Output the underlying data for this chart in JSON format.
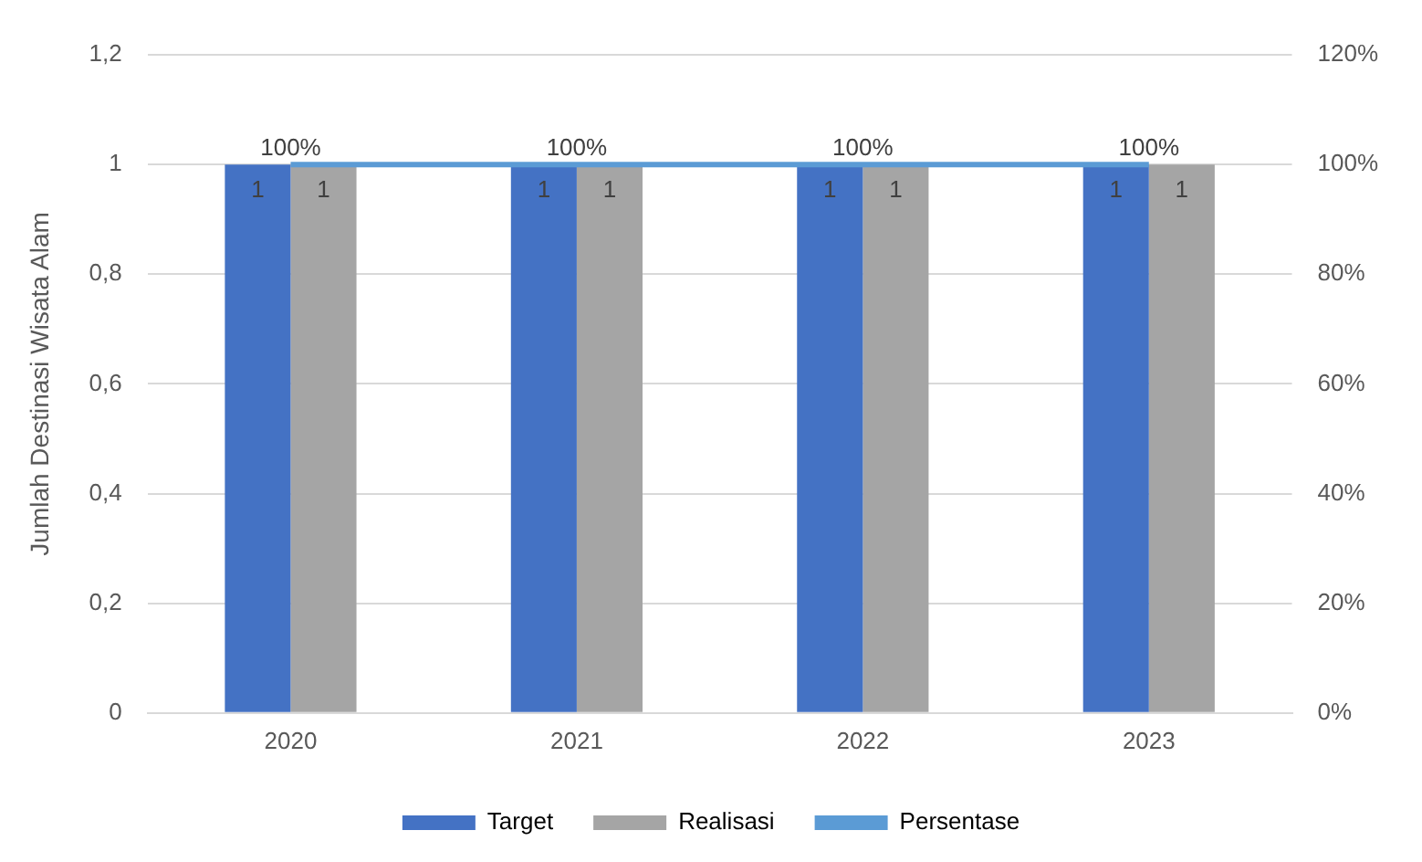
{
  "chart_data": {
    "type": "bar",
    "ylabel": "Jumlah Destinasi Wisata Alam",
    "categories": [
      "2020",
      "2021",
      "2022",
      "2023"
    ],
    "series": [
      {
        "name": "Target",
        "color": "#4472c4",
        "values": [
          1,
          1,
          1,
          1
        ],
        "value_labels": [
          "1",
          "1",
          "1",
          "1"
        ]
      },
      {
        "name": "Realisasi",
        "color": "#a5a5a5",
        "values": [
          1,
          1,
          1,
          1
        ],
        "value_labels": [
          "1",
          "1",
          "1",
          "1"
        ]
      },
      {
        "name": "Persentase",
        "type": "line",
        "axis": "y2",
        "color": "#5b9bd5",
        "values": [
          100,
          100,
          100,
          100
        ],
        "value_labels": [
          "100%",
          "100%",
          "100%",
          "100%"
        ]
      }
    ],
    "ylim": [
      0,
      1.2
    ],
    "yticks": [
      0,
      {
        "value": 0.2,
        "label": "0,2"
      },
      {
        "value": 0.4,
        "label": "0,4"
      },
      {
        "value": 0.6,
        "label": "0,6"
      },
      {
        "value": 0.8,
        "label": "0,8"
      },
      1,
      {
        "value": 1.2,
        "label": "1,2"
      }
    ],
    "y2lim": [
      0,
      120
    ],
    "y2ticks": [
      {
        "value": 0,
        "label": "0%"
      },
      {
        "value": 20,
        "label": "20%"
      },
      {
        "value": 40,
        "label": "40%"
      },
      {
        "value": 60,
        "label": "60%"
      },
      {
        "value": 80,
        "label": "80%"
      },
      {
        "value": 100,
        "label": "100%"
      },
      {
        "value": 120,
        "label": "120%"
      }
    ],
    "grid": "y",
    "legend": "bottom",
    "marker": "none"
  }
}
